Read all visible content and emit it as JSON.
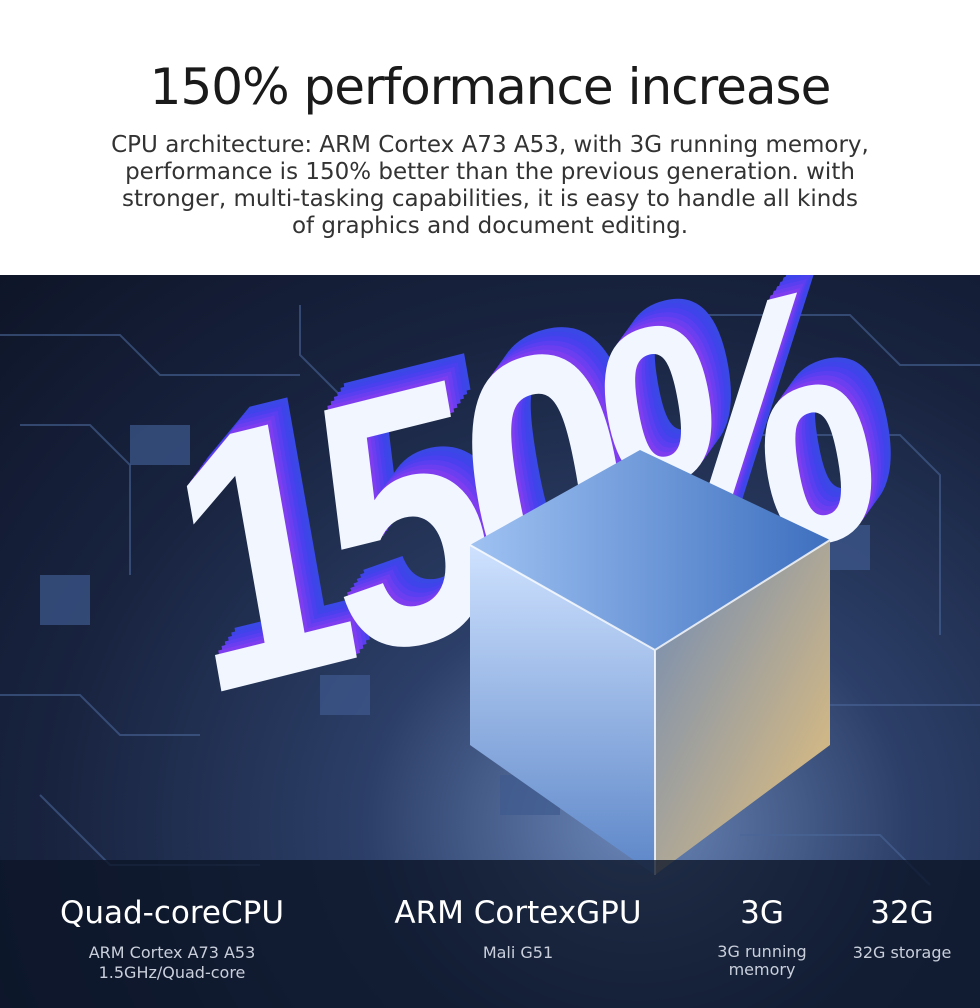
{
  "header": {
    "title": "150% performance increase",
    "description_lines": [
      "CPU architecture: ARM Cortex A73 A53, with 3G running memory,",
      "performance is 150% better than the previous generation. with",
      "stronger, multi-tasking capabilities, it is easy to handle all kinds",
      "of graphics and document editing."
    ]
  },
  "hero": {
    "big_text": "150%"
  },
  "specs": [
    {
      "title": "Quad-coreCPU",
      "details": [
        "ARM Cortex A73 A53",
        "1.5GHz/Quad-core"
      ]
    },
    {
      "title": "ARM CortexGPU",
      "details": [
        "Mali G51"
      ]
    },
    {
      "title": "3G",
      "details": [
        "3G running memory"
      ]
    },
    {
      "title": "32G",
      "details": [
        "32G storage"
      ]
    }
  ]
}
